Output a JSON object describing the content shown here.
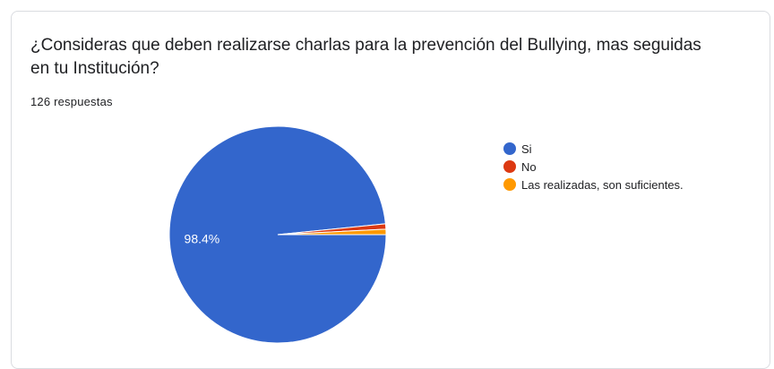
{
  "form": {
    "question": "¿Consideras que deben realizarse charlas para la prevención del Bullying, mas seguidas en tu Institución?",
    "responses_label": "126 respuestas"
  },
  "chart_data": {
    "type": "pie",
    "total_responses": 126,
    "slices": [
      {
        "label": "Si",
        "value": 98.4,
        "color": "#3366cc",
        "data_label": "98.4%"
      },
      {
        "label": "No",
        "value": 0.8,
        "color": "#dc3912",
        "data_label": ""
      },
      {
        "label": "Las realizadas, son suficientes.",
        "value": 0.8,
        "color": "#ff9900",
        "data_label": ""
      }
    ],
    "legend_position": "right"
  }
}
